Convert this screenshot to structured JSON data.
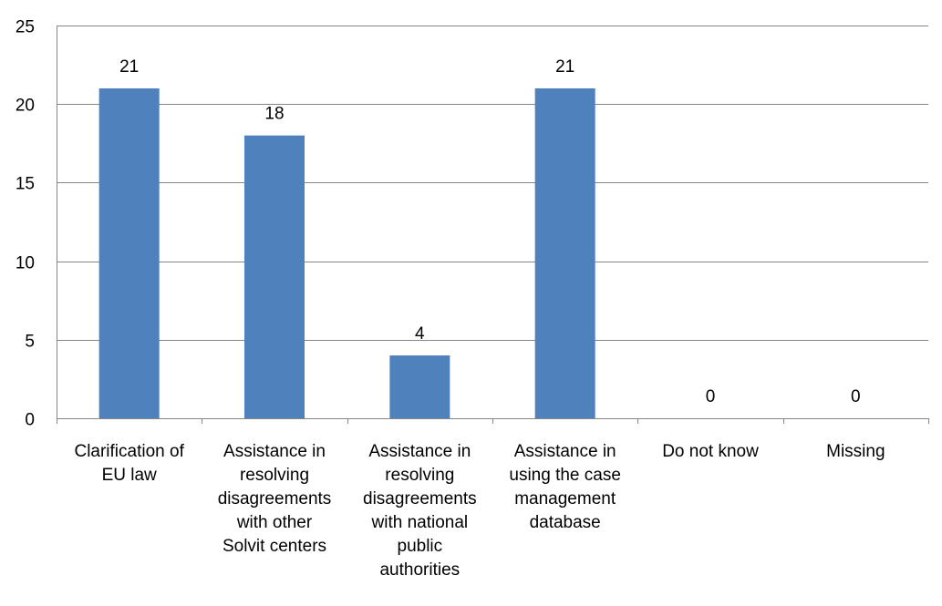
{
  "chart_data": {
    "type": "bar",
    "categories": [
      [
        "Clarification of",
        "EU law"
      ],
      [
        "Assistance in",
        "resolving",
        "disagreements",
        "with other",
        "Solvit centers"
      ],
      [
        "Assistance in",
        "resolving",
        "disagreements",
        "with national",
        "public",
        "authorities"
      ],
      [
        "Assistance in",
        "using the case",
        "management",
        "database"
      ],
      [
        "Do not know"
      ],
      [
        "Missing"
      ]
    ],
    "values": [
      21,
      18,
      4,
      21,
      0,
      0
    ],
    "ylim": [
      0,
      25
    ],
    "yticks": [
      0,
      5,
      10,
      15,
      20,
      25
    ],
    "grid": true,
    "bar_color": "#4F81BD",
    "grid_color": "#868686"
  }
}
